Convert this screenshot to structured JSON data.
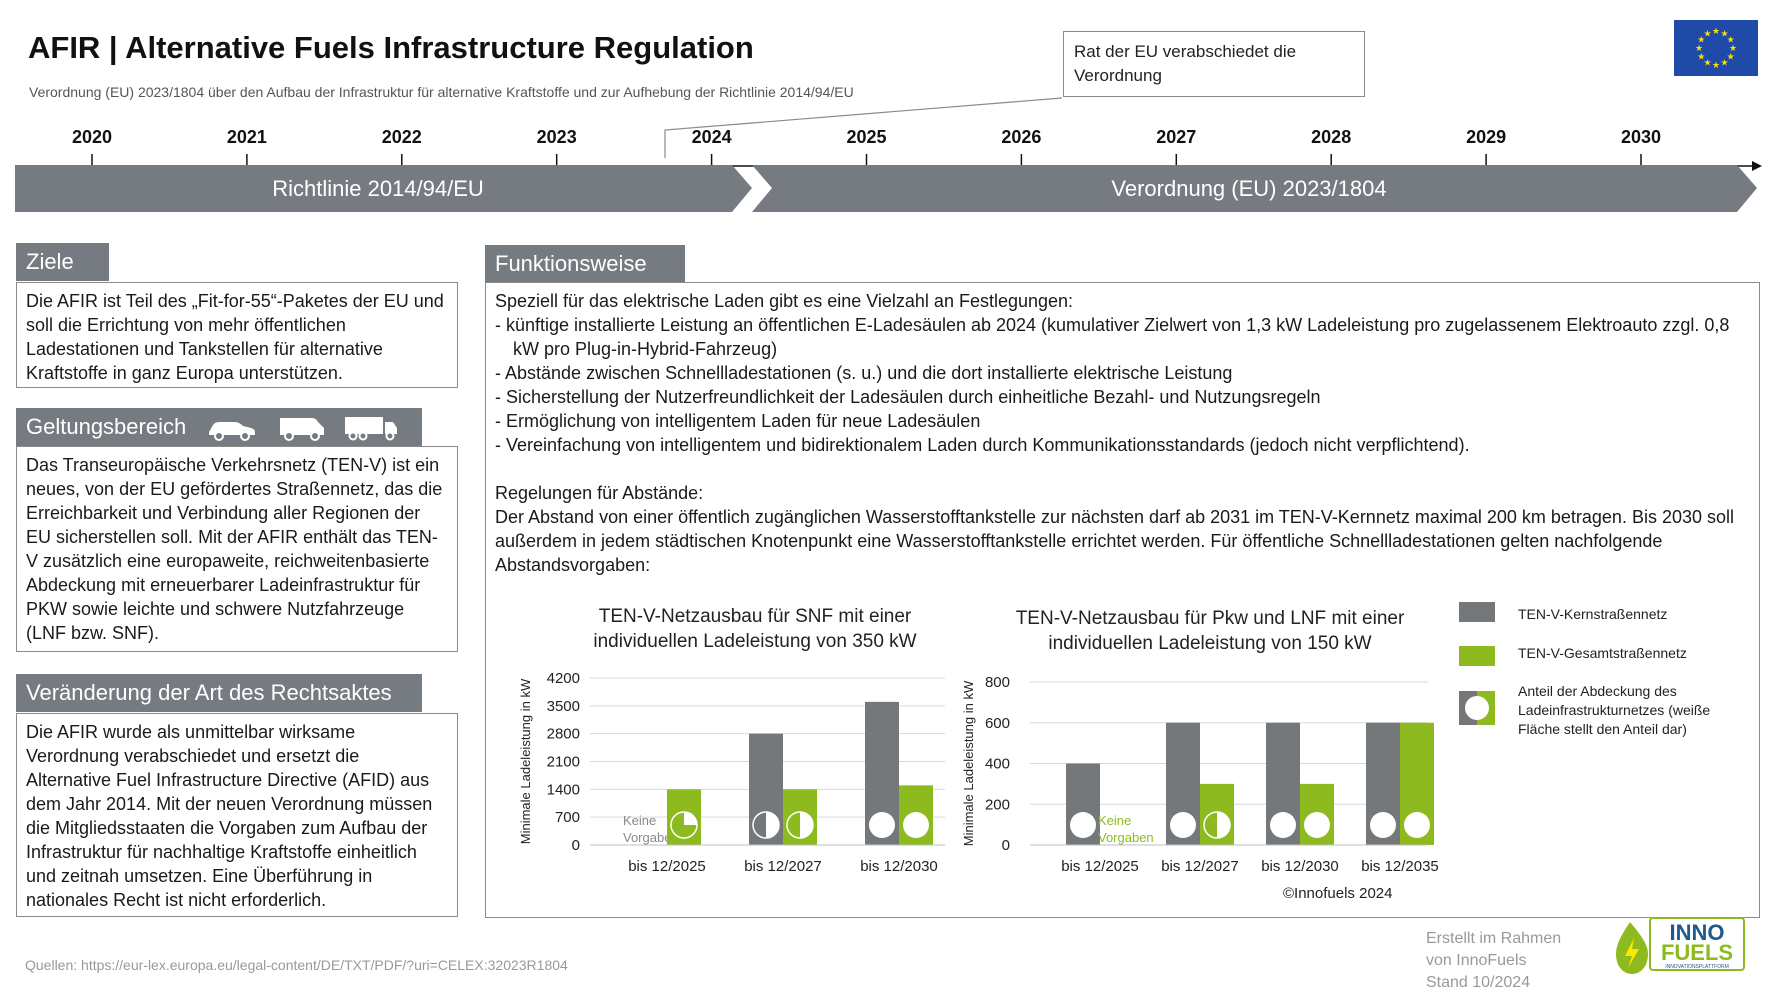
{
  "header": {
    "title": "AFIR | Alternative Fuels Infrastructure Regulation",
    "subtitle": "Verordnung (EU) 2023/1804  über den Aufbau der Infrastruktur für alternative Kraftstoffe  und zur Aufhebung der Richtlinie 2014/94/EU",
    "callout": "Rat der EU verabschiedet die Verordnung"
  },
  "timeline": {
    "years": [
      "2020",
      "2021",
      "2022",
      "2023",
      "2024",
      "2025",
      "2026",
      "2027",
      "2028",
      "2029",
      "2030"
    ],
    "phase1": "Richtlinie 2014/94/EU",
    "phase2": "Verordnung (EU) 2023/1804"
  },
  "ziele": {
    "title": "Ziele",
    "text": "Die AFIR ist Teil des „Fit-for-55“-Paketes der EU und soll die Errichtung von mehr öffentlichen Ladestationen und Tankstellen für alternative Kraftstoffe in ganz Europa unterstützen."
  },
  "geltungsbereich": {
    "title": "Geltungsbereich",
    "icons": [
      "car-icon",
      "van-icon",
      "truck-icon"
    ],
    "text": "Das Transeuropäische Verkehrsnetz (TEN-V) ist ein neues, von der EU gefördertes Straßennetz, das die Erreichbarkeit und Verbindung aller Regionen der EU sicherstellen soll. Mit der AFIR enthält das TEN-V zusätzlich eine europaweite, reichweitenbasierte Abdeckung mit erneuerbarer Ladeinfrastruktur für PKW sowie leichte und schwere Nutzfahrzeuge (LNF bzw. SNF)."
  },
  "rechtsakt": {
    "title": "Veränderung der Art des Rechtsaktes",
    "text": "Die AFIR wurde als unmittelbar wirksame Verordnung verabschiedet und ersetzt  die Alternative Fuel Infrastructure Directive (AFID) aus dem Jahr 2014. Mit der neuen Verordnung müssen die Mitgliedsstaaten die Vorgaben zum Aufbau der Infrastruktur für nachhaltige Kraftstoffe einheitlich und zeitnah umsetzen. Eine Überführung in nationales Recht ist nicht erforderlich."
  },
  "funktionsweise": {
    "title": "Funktionsweise",
    "intro": "Speziell für das elektrische Laden gibt es eine Vielzahl an Festlegungen:",
    "bullets": [
      "-   künftige installierte Leistung an öffentlichen E-Ladesäulen ab 2024 (kumulativer Zielwert von 1,3 kW Ladeleistung pro zugelassenem Elektroauto zzgl. 0,8 kW pro Plug-in-Hybrid-Fahrzeug)",
      "-   Abstände zwischen Schnellladestationen (s. u.) und die dort installierte elektrische Leistung",
      "-   Sicherstellung der Nutzerfreundlichkeit der Ladesäulen durch einheitliche Bezahl- und Nutzungsregeln",
      "-   Ermöglichung von intelligentem Laden für neue Ladesäulen",
      "-   Vereinfachung von intelligentem und bidirektionalem Laden durch Kommunikationsstandards (jedoch nicht verpflichtend)."
    ],
    "abstand_title": "Regelungen für Abstände:",
    "abstand_text": "Der Abstand von einer öffentlich zugänglichen Wasserstofftankstelle zur nächsten darf ab 2031 im TEN-V-Kernnetz maximal 200 km betragen. Bis 2030 soll außerdem in jedem städtischen Knotenpunkt eine Wasserstofftankstelle errichtet werden. Für öffentliche Schnellladestationen gelten nachfolgende Abstandsvorgaben:"
  },
  "legend": {
    "core": "TEN-V-Kernstraßennetz",
    "total": "TEN-V-Gesamtstraßennetz",
    "share": "Anteil der Abdeckung des Ladeinfrastrukturnetzes (weiße Fläche stellt den Anteil dar)"
  },
  "chart_data": [
    {
      "type": "bar",
      "title": "TEN-V-Netzausbau  für SNF mit einer individuellen  Ladeleistung von 350 kW",
      "ylabel": "Minimale Ladeleistung in kW",
      "ylim": [
        0,
        4200
      ],
      "yticks": [
        0,
        700,
        1400,
        2100,
        2800,
        3500,
        4200
      ],
      "categories": [
        "bis 12/2025",
        "bis 12/2027",
        "bis 12/2030"
      ],
      "series": [
        {
          "name": "TEN-V-Kernstraßennetz",
          "color": "#75787b",
          "values": [
            0,
            2800,
            3600
          ],
          "coverage": [
            null,
            0.5,
            1.0
          ]
        },
        {
          "name": "TEN-V-Gesamtstraßennetz",
          "color": "#8dbb1f",
          "values": [
            1400,
            1400,
            1500
          ],
          "coverage": [
            0.25,
            0.5,
            1.0
          ]
        }
      ],
      "annotation": "Keine Vorgaben",
      "annotation_color": "#8a8a8a"
    },
    {
      "type": "bar",
      "title": "TEN-V-Netzausbau  für Pkw und LNF mit einer individuellen  Ladeleistung von 150 kW",
      "ylabel": "Minimale Ladeleistung in kW",
      "ylim": [
        0,
        800
      ],
      "yticks": [
        0,
        200,
        400,
        600,
        800
      ],
      "categories": [
        "bis 12/2025",
        "bis 12/2027",
        "bis 12/2030",
        "bis 12/2035"
      ],
      "series": [
        {
          "name": "TEN-V-Kernstraßennetz",
          "color": "#75787b",
          "values": [
            400,
            600,
            600,
            600
          ],
          "coverage": [
            1.0,
            1.0,
            1.0,
            1.0
          ]
        },
        {
          "name": "TEN-V-Gesamtstraßennetz",
          "color": "#8dbb1f",
          "values": [
            0,
            300,
            300,
            600
          ],
          "coverage": [
            null,
            0.5,
            1.0,
            1.0
          ]
        }
      ],
      "annotation": "Keine Vorgaben",
      "annotation_color": "#8dbb1f"
    }
  ],
  "footer": {
    "copyright": "©Innofuels 2024",
    "sources": "Quellen: https://eur-lex.europa.eu/legal-content/DE/TXT/PDF/?uri=CELEX:32023R1804",
    "created": [
      "Erstellt im Rahmen",
      "von InnoFuels",
      "Stand 10/2024"
    ],
    "logo_line1": "INNO",
    "logo_line2": "FUELS",
    "logo_tagline": "INNOVATIONSPLATTFORM"
  },
  "colors": {
    "grey": "#75787b",
    "green": "#8dbb1f",
    "eu_blue": "#1f4aa8",
    "eu_gold": "#ffdd00"
  }
}
